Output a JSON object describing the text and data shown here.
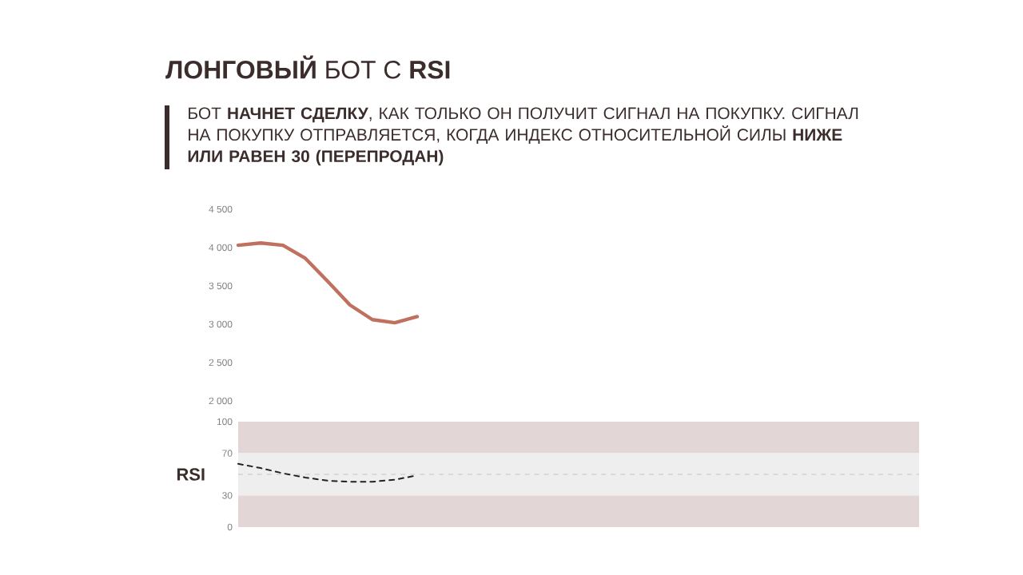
{
  "chart_data": [
    {
      "type": "line",
      "title": "**ЛОНГОВЫЙ** БОТ С **RSI**",
      "subtitle": "БОТ **НАЧНЕТ СДЕЛКУ**, КАК ТОЛЬКО ОН ПОЛУЧИТ СИГНАЛ НА ПОКУПКУ. СИГНАЛ НА ПОКУПКУ ОТПРАВЛЯЕТСЯ, КОГДА ИНДЕКС ОТНОСИТЕЛЬНОЙ СИЛЫ **НИЖЕ ИЛИ РАВЕН 30 (ПЕРЕПРОДАН)**",
      "categories": [
        null,
        null,
        null,
        null,
        null,
        null,
        null,
        null,
        null
      ],
      "series": [
        {
          "color": "#c0705f",
          "values": [
            4030,
            4060,
            4030,
            3860,
            3560,
            3250,
            3060,
            3020,
            3100
          ]
        }
      ],
      "ylim": [
        2000,
        4500
      ],
      "yticks": [
        {
          "value": 2000,
          "label": "2 000"
        },
        {
          "value": 2500,
          "label": "2 500"
        },
        {
          "value": 3000,
          "label": "3 000"
        },
        {
          "value": 3500,
          "label": "3 500"
        },
        {
          "value": 4000,
          "label": "4 000"
        },
        {
          "value": 4500,
          "label": "4 500"
        }
      ],
      "tick_labels": "y"
    },
    {
      "type": "line",
      "annotations": [
        "RSI"
      ],
      "categories": [
        null,
        null,
        null,
        null,
        null,
        null,
        null,
        null,
        null
      ],
      "series": [
        {
          "color": "#222222",
          "line_style": "dashed",
          "values": [
            60,
            56,
            51,
            47,
            44,
            43,
            43,
            45,
            49
          ]
        }
      ],
      "ylim": [
        0,
        100
      ],
      "yticks": [
        0,
        30,
        70,
        100
      ],
      "bands": [
        {
          "axis": "y",
          "from": 70,
          "to": 100,
          "color": "#e2d6d6"
        },
        {
          "axis": "y",
          "from": 30,
          "to": 70,
          "color": "#eeeeee"
        },
        {
          "axis": "y",
          "from": 0,
          "to": 30,
          "color": "#e2d6d6"
        }
      ],
      "ref_lines": [
        {
          "axis": "y",
          "value": 50,
          "color": "#bbbbbb",
          "line_style": "dashed"
        }
      ],
      "tick_labels": "y"
    }
  ]
}
